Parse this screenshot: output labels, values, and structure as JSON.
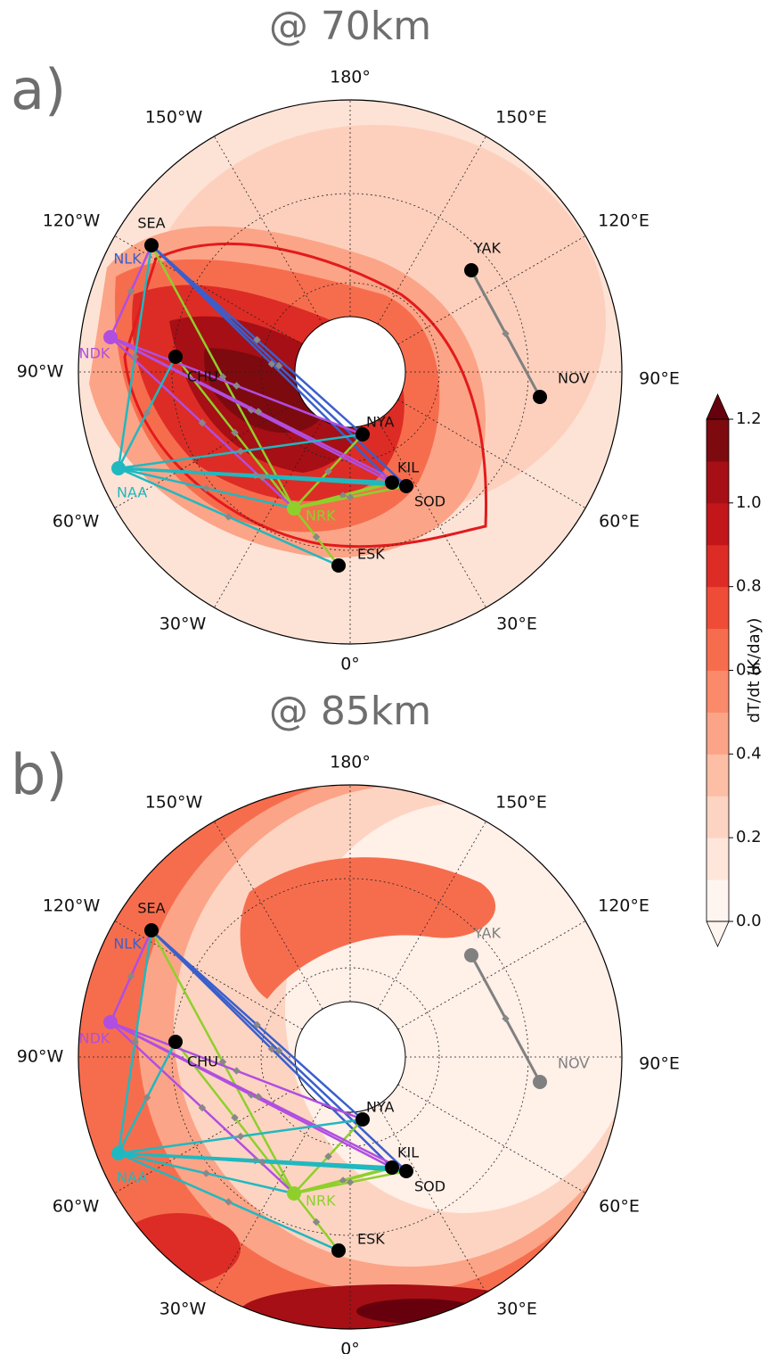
{
  "panels": [
    {
      "title": "@ 70km",
      "label": "a)",
      "lon_labels": [
        "180°",
        "150°W",
        "150°E",
        "120°W",
        "120°E",
        "90°W",
        "90°E",
        "60°W",
        "60°E",
        "30°W",
        "30°E",
        "0°"
      ],
      "stations": [
        "SEA",
        "NLK",
        "NDK",
        "CHU",
        "NAA",
        "NRK",
        "NYA",
        "KIL",
        "SOD",
        "ESK",
        "YAK",
        "NOV"
      ]
    },
    {
      "title": "@ 85km",
      "label": "b)",
      "lon_labels": [
        "180°",
        "150°W",
        "150°E",
        "120°W",
        "120°E",
        "90°W",
        "90°E",
        "60°W",
        "60°E",
        "30°W",
        "30°E",
        "0°"
      ],
      "stations": [
        "SEA",
        "NLK",
        "NDK",
        "CHU",
        "NAA",
        "NRK",
        "NYA",
        "KIL",
        "SOD",
        "ESK",
        "YAK",
        "NOV"
      ]
    }
  ],
  "colorbar": {
    "label": "dT/dt (K/day)",
    "lim": [
      0,
      1.2
    ],
    "ticks": [
      {
        "value": 0,
        "label": "0.0"
      },
      {
        "value": 0.2,
        "label": "0.2"
      },
      {
        "value": 0.4,
        "label": "0.4"
      },
      {
        "value": 0.6,
        "label": "0.6"
      },
      {
        "value": 0.8,
        "label": "0.8"
      },
      {
        "value": 1,
        "label": "1.0"
      },
      {
        "value": 1.2,
        "label": "1.2"
      }
    ],
    "colors": [
      "#fff5f0",
      "#fee6da",
      "#fdd4c2",
      "#fcbea5",
      "#fca487",
      "#fb8a6a",
      "#f66d4e",
      "#ef4c37",
      "#dd2c25",
      "#c3161b",
      "#a60f15",
      "#7d0a0f"
    ],
    "over_color": "#67000d"
  }
}
